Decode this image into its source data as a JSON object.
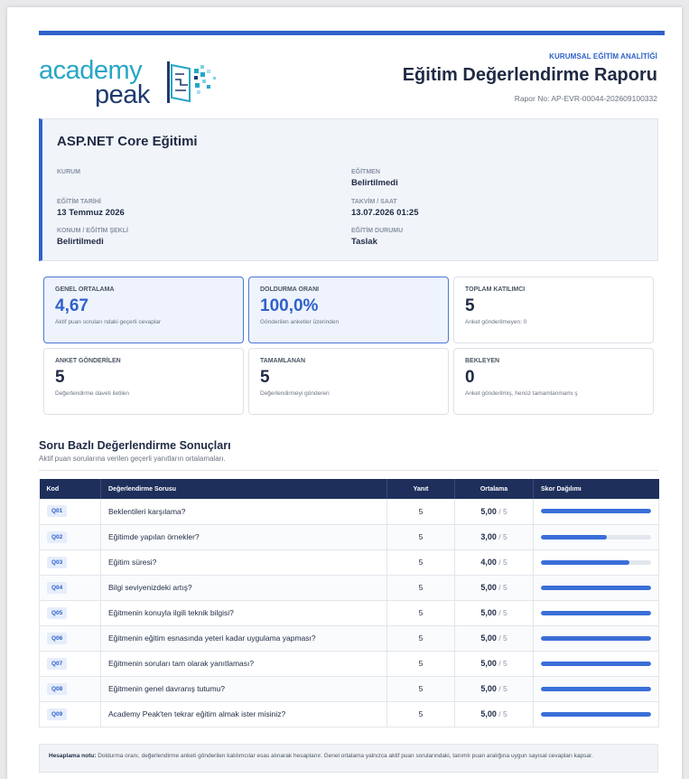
{
  "brand": {
    "logo_top": "academy",
    "logo_bottom": "peak",
    "colors": {
      "teal": "#27a6c6",
      "navy": "#1e3a6e",
      "accent": "#2f62c9"
    }
  },
  "header": {
    "kicker": "KURUMSAL EĞİTİM ANALİTİĞİ",
    "title": "Eğitim Değerlendirme Raporu",
    "report_no": "Rapor No: AP-EVR-00044-202609100332"
  },
  "course": {
    "title": "ASP.NET Core Eğitimi",
    "fields": [
      {
        "label": "KURUM",
        "value": ""
      },
      {
        "label": "EĞİTMEN",
        "value": "Belirtilmedi"
      },
      {
        "label": "EĞİTİM TARİHİ",
        "value": "13 Temmuz 2026"
      },
      {
        "label": "TAKVİM / SAAT",
        "value": "13.07.2026 01:25"
      },
      {
        "label": "KONUM / EĞİTİM ŞEKLİ",
        "value": "Belirtilmedi"
      },
      {
        "label": "EĞİTİM DURUMU",
        "value": "Taslak"
      }
    ]
  },
  "cards": [
    {
      "label": "GENEL ORTALAMA",
      "value": "4,67",
      "sub": "Aktif puan soruları ndaki geçerli cevaplar"
    },
    {
      "label": "DOLDURMA ORANI",
      "value": "100,0%",
      "sub": "Gönderilen anketler üzerinden"
    },
    {
      "label": "TOPLAM KATILIMCI",
      "value": "5",
      "sub": "Anket gönderilmeyen: 0"
    },
    {
      "label": "ANKET GÖNDERİLEN",
      "value": "5",
      "sub": "Değerlendirme daveti iletilen"
    },
    {
      "label": "TAMAMLANAN",
      "value": "5",
      "sub": "Değerlendirmeyi gönderen"
    },
    {
      "label": "BEKLEYEN",
      "value": "0",
      "sub": "Anket gönderilmiş, henüz tamamlanmamı ş"
    }
  ],
  "section": {
    "title": "Soru Bazlı Değerlendirme Sonuçları",
    "subtitle": "Aktif puan sorularına verilen geçerli yanıtların ortalamaları."
  },
  "table": {
    "headers": [
      "Kod",
      "Değerlendirme Sorusu",
      "Yanıt",
      "Ortalama",
      "Skor Dağılımı"
    ],
    "max_label": "/ 5",
    "rows": [
      {
        "code": "Q01",
        "question": "Beklentileri karşılama?",
        "answers": "5",
        "avg": "5,00",
        "score": 5.0
      },
      {
        "code": "Q02",
        "question": "Eğitimde yapılan örnekler?",
        "answers": "5",
        "avg": "3,00",
        "score": 3.0
      },
      {
        "code": "Q03",
        "question": "Eğitim süresi?",
        "answers": "5",
        "avg": "4,00",
        "score": 4.0
      },
      {
        "code": "Q04",
        "question": "Bilgi seviyenizdeki artış?",
        "answers": "5",
        "avg": "5,00",
        "score": 5.0
      },
      {
        "code": "Q05",
        "question": "Eğitmenin konuyla ilgili teknik bilgisi?",
        "answers": "5",
        "avg": "5,00",
        "score": 5.0
      },
      {
        "code": "Q06",
        "question": "Eğitmenin eğitim esnasında yeteri kadar uygulama yapması?",
        "answers": "5",
        "avg": "5,00",
        "score": 5.0
      },
      {
        "code": "Q07",
        "question": "Eğitmenin soruları tam olarak yanıtlaması?",
        "answers": "5",
        "avg": "5,00",
        "score": 5.0
      },
      {
        "code": "Q08",
        "question": "Eğitmenin genel davranış tutumu?",
        "answers": "5",
        "avg": "5,00",
        "score": 5.0
      },
      {
        "code": "Q09",
        "question": "Academy Peak'ten tekrar eğitim almak ister misiniz?",
        "answers": "5",
        "avg": "5,00",
        "score": 5.0
      }
    ]
  },
  "note": {
    "label": "Hesaplama notu:",
    "text": "Doldurma oranı, değerlendirme anketi gönderilen katılımcılar esas alınarak hesaplanır. Genel ortalama yalnızca aktif puan sorularındaki, tanımlı puan aralığına uygun sayısal cevapları kapsar."
  }
}
